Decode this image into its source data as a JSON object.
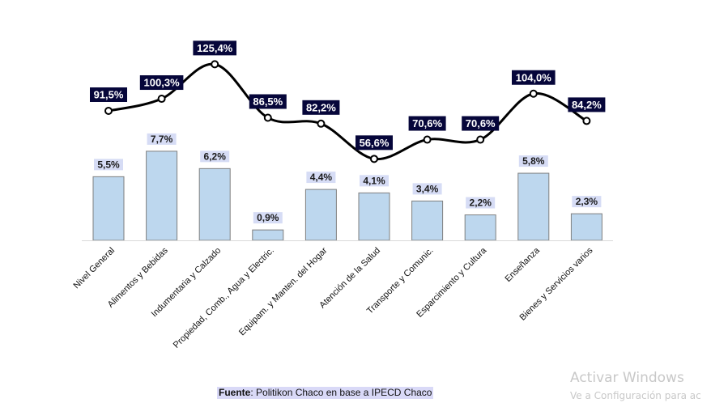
{
  "chart_data": [
    {
      "type": "bar",
      "categories": [
        "Nivel General",
        "Alimentos y Bebidas",
        "Indumentaria y Calzado",
        "Propiedad, Comb., Agua y Electric.",
        "Equipam. y Manten. del Hogar",
        "Atención de la Salud",
        "Transporte y Comunic.",
        "Esparcimiento y Cultura",
        "Enseñanza",
        "Bienes y Servicios varios"
      ],
      "values": [
        5.5,
        7.7,
        6.2,
        0.9,
        4.4,
        4.1,
        3.4,
        2.2,
        5.8,
        2.3
      ],
      "labels": [
        "5,5%",
        "7,7%",
        "6,2%",
        "0,9%",
        "4,4%",
        "4,1%",
        "3,4%",
        "2,2%",
        "5,8%",
        "2,3%"
      ],
      "bar_color": "#bdd7ee",
      "bar_border": "#7f7f7f",
      "label_bg": "#d6dcf5"
    },
    {
      "type": "line",
      "categories": [
        "Nivel General",
        "Alimentos y Bebidas",
        "Indumentaria y Calzado",
        "Propiedad, Comb., Agua y Electric.",
        "Equipam. y Manten. del Hogar",
        "Atención de la Salud",
        "Transporte y Comunic.",
        "Esparcimiento y Cultura",
        "Enseñanza",
        "Bienes y Servicios varios"
      ],
      "values": [
        91.5,
        100.3,
        125.4,
        86.5,
        82.2,
        56.6,
        70.6,
        70.6,
        104.0,
        84.2
      ],
      "labels": [
        "91,5%",
        "100,3%",
        "125,4%",
        "86,5%",
        "82,2%",
        "56,6%",
        "70,6%",
        "70,6%",
        "104,0%",
        "84,2%"
      ],
      "line_color": "#000000",
      "label_bg": "#06063a",
      "label_color": "#ffffff"
    }
  ],
  "source": {
    "label": "Fuente",
    "text": ": Politikon Chaco en base a IPECD Chaco"
  },
  "watermark": {
    "title": "Activar Windows",
    "subtitle": "Ve a Configuración para ac"
  }
}
